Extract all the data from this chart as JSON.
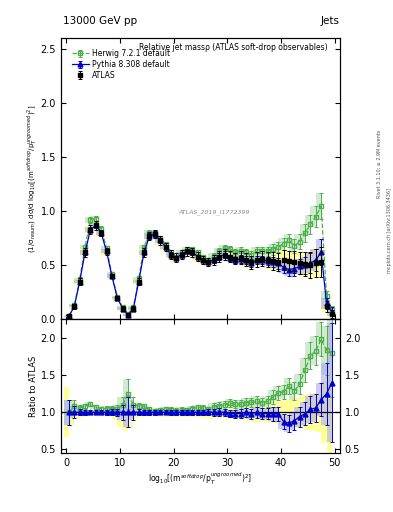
{
  "title_left": "13000 GeV pp",
  "title_right": "Jets",
  "plot_title": "Relative jet massρ (ATLAS soft-drop observables)",
  "ylabel_main": "(1/σ$_{resum}$) dσ/d log$_{10}$[(m$^{soft drop}$/p$_T^{ungroomed}$)$^2$]",
  "ylabel_ratio": "Ratio to ATLAS",
  "xlabel": "log$_{10}$[(m$^{soft drop}$/p$_T^{ungroomed}$)$^2$]",
  "right_label": "Rivet 3.1.10; ≥ 2.9M events",
  "right_label2": "mcplots.cern.ch [arXiv:1306.3436]",
  "ylim_main": [
    0.0,
    2.6
  ],
  "ylim_ratio": [
    0.45,
    2.25
  ],
  "xlim": [
    -1,
    51
  ],
  "legend_labels": [
    "ATLAS",
    "Herwig 7.2.1 default",
    "Pythia 8.308 default"
  ],
  "x": [
    0.5,
    1.5,
    2.5,
    3.5,
    4.5,
    5.5,
    6.5,
    7.5,
    8.5,
    9.5,
    10.5,
    11.5,
    12.5,
    13.5,
    14.5,
    15.5,
    16.5,
    17.5,
    18.5,
    19.5,
    20.5,
    21.5,
    22.5,
    23.5,
    24.5,
    25.5,
    26.5,
    27.5,
    28.5,
    29.5,
    30.5,
    31.5,
    32.5,
    33.5,
    34.5,
    35.5,
    36.5,
    37.5,
    38.5,
    39.5,
    40.5,
    41.5,
    42.5,
    43.5,
    44.5,
    45.5,
    46.5,
    47.5,
    48.5,
    49.5
  ],
  "atlas_y": [
    0.03,
    0.12,
    0.35,
    0.62,
    0.83,
    0.87,
    0.8,
    0.63,
    0.4,
    0.2,
    0.1,
    0.04,
    0.1,
    0.35,
    0.62,
    0.77,
    0.79,
    0.73,
    0.67,
    0.6,
    0.57,
    0.6,
    0.63,
    0.62,
    0.58,
    0.55,
    0.53,
    0.55,
    0.58,
    0.6,
    0.58,
    0.56,
    0.57,
    0.55,
    0.53,
    0.55,
    0.56,
    0.55,
    0.54,
    0.53,
    0.55,
    0.54,
    0.53,
    0.52,
    0.51,
    0.5,
    0.52,
    0.53,
    0.12,
    0.05
  ],
  "atlas_yerr": [
    0.01,
    0.02,
    0.03,
    0.04,
    0.04,
    0.04,
    0.03,
    0.03,
    0.02,
    0.02,
    0.02,
    0.01,
    0.02,
    0.03,
    0.04,
    0.04,
    0.04,
    0.04,
    0.04,
    0.04,
    0.04,
    0.04,
    0.04,
    0.04,
    0.04,
    0.04,
    0.04,
    0.05,
    0.05,
    0.05,
    0.05,
    0.05,
    0.06,
    0.06,
    0.06,
    0.07,
    0.07,
    0.07,
    0.08,
    0.08,
    0.09,
    0.09,
    0.1,
    0.1,
    0.11,
    0.12,
    0.13,
    0.14,
    0.05,
    0.04
  ],
  "herwig_y": [
    0.03,
    0.13,
    0.37,
    0.67,
    0.92,
    0.93,
    0.84,
    0.66,
    0.42,
    0.21,
    0.11,
    0.05,
    0.11,
    0.38,
    0.67,
    0.8,
    0.8,
    0.75,
    0.7,
    0.62,
    0.58,
    0.62,
    0.65,
    0.65,
    0.62,
    0.58,
    0.55,
    0.59,
    0.63,
    0.66,
    0.65,
    0.62,
    0.63,
    0.62,
    0.6,
    0.63,
    0.63,
    0.63,
    0.65,
    0.67,
    0.7,
    0.73,
    0.68,
    0.72,
    0.8,
    0.88,
    0.95,
    1.05,
    0.22,
    0.09
  ],
  "herwig_yerr": [
    0.005,
    0.01,
    0.015,
    0.02,
    0.025,
    0.025,
    0.02,
    0.02,
    0.015,
    0.01,
    0.01,
    0.008,
    0.01,
    0.015,
    0.02,
    0.025,
    0.025,
    0.02,
    0.02,
    0.02,
    0.02,
    0.02,
    0.02,
    0.02,
    0.02,
    0.02,
    0.02,
    0.025,
    0.03,
    0.03,
    0.03,
    0.03,
    0.035,
    0.035,
    0.035,
    0.04,
    0.04,
    0.04,
    0.05,
    0.05,
    0.055,
    0.06,
    0.065,
    0.07,
    0.08,
    0.09,
    0.1,
    0.12,
    0.04,
    0.03
  ],
  "pythia_y": [
    0.03,
    0.12,
    0.35,
    0.62,
    0.83,
    0.87,
    0.8,
    0.63,
    0.4,
    0.2,
    0.1,
    0.04,
    0.1,
    0.35,
    0.62,
    0.77,
    0.79,
    0.73,
    0.67,
    0.6,
    0.57,
    0.6,
    0.63,
    0.62,
    0.58,
    0.55,
    0.53,
    0.55,
    0.58,
    0.6,
    0.57,
    0.55,
    0.56,
    0.55,
    0.52,
    0.55,
    0.55,
    0.54,
    0.53,
    0.52,
    0.48,
    0.46,
    0.47,
    0.49,
    0.5,
    0.52,
    0.55,
    0.62,
    0.15,
    0.07
  ],
  "pythia_yerr": [
    0.005,
    0.01,
    0.015,
    0.02,
    0.025,
    0.025,
    0.02,
    0.02,
    0.015,
    0.01,
    0.01,
    0.008,
    0.01,
    0.015,
    0.02,
    0.025,
    0.025,
    0.02,
    0.02,
    0.02,
    0.02,
    0.02,
    0.02,
    0.02,
    0.02,
    0.02,
    0.02,
    0.025,
    0.03,
    0.03,
    0.03,
    0.03,
    0.035,
    0.035,
    0.035,
    0.04,
    0.04,
    0.04,
    0.05,
    0.05,
    0.055,
    0.06,
    0.065,
    0.07,
    0.08,
    0.09,
    0.1,
    0.12,
    0.05,
    0.04
  ],
  "atlas_color": "#000000",
  "herwig_color": "#4daf4a",
  "pythia_color": "#0000cc",
  "herwig_band_color": "#c8e6c8",
  "pythia_band_color": "#aaaaee",
  "atlas_band_color": "#ffff99",
  "yticks_main": [
    0.0,
    0.5,
    1.0,
    1.5,
    2.0,
    2.5
  ],
  "yticks_ratio": [
    0.5,
    1.0,
    1.5,
    2.0
  ],
  "xticks": [
    0,
    10,
    20,
    30,
    40,
    50
  ]
}
